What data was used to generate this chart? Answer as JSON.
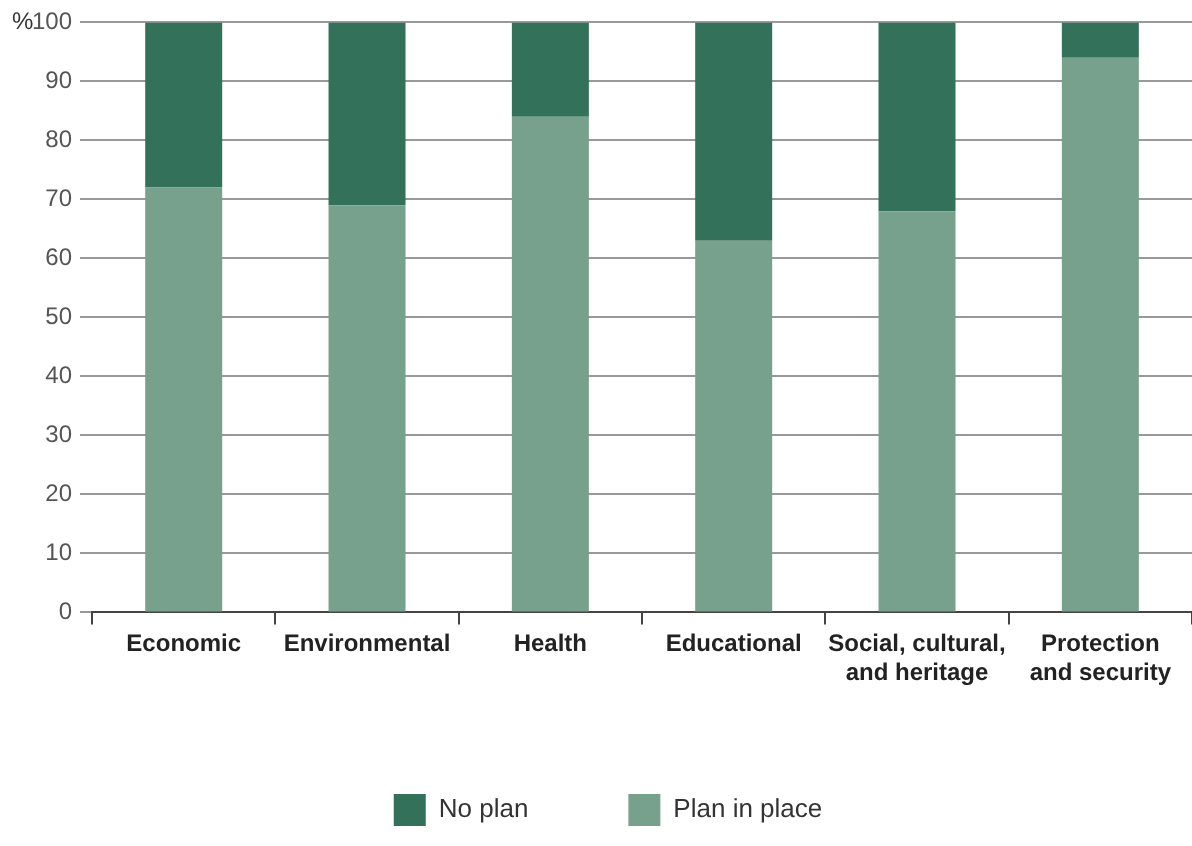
{
  "chart_data": {
    "type": "bar",
    "stacked": true,
    "ylabel": "%",
    "categories": [
      "Economic",
      "Environmental",
      "Health",
      "Educational",
      "Social, cultural, and heritage",
      "Protection and security"
    ],
    "series": [
      {
        "name": "Plan in place",
        "color": "#78a18d",
        "values": [
          72,
          69,
          84,
          63,
          68,
          94
        ]
      },
      {
        "name": "No plan",
        "color": "#33715a",
        "values": [
          28,
          31,
          16,
          37,
          32,
          6
        ]
      }
    ],
    "ylim": [
      0,
      100
    ],
    "yticks": [
      0,
      10,
      20,
      30,
      40,
      50,
      60,
      70,
      80,
      90,
      100
    ],
    "grid": "y",
    "legend": "bottom"
  }
}
